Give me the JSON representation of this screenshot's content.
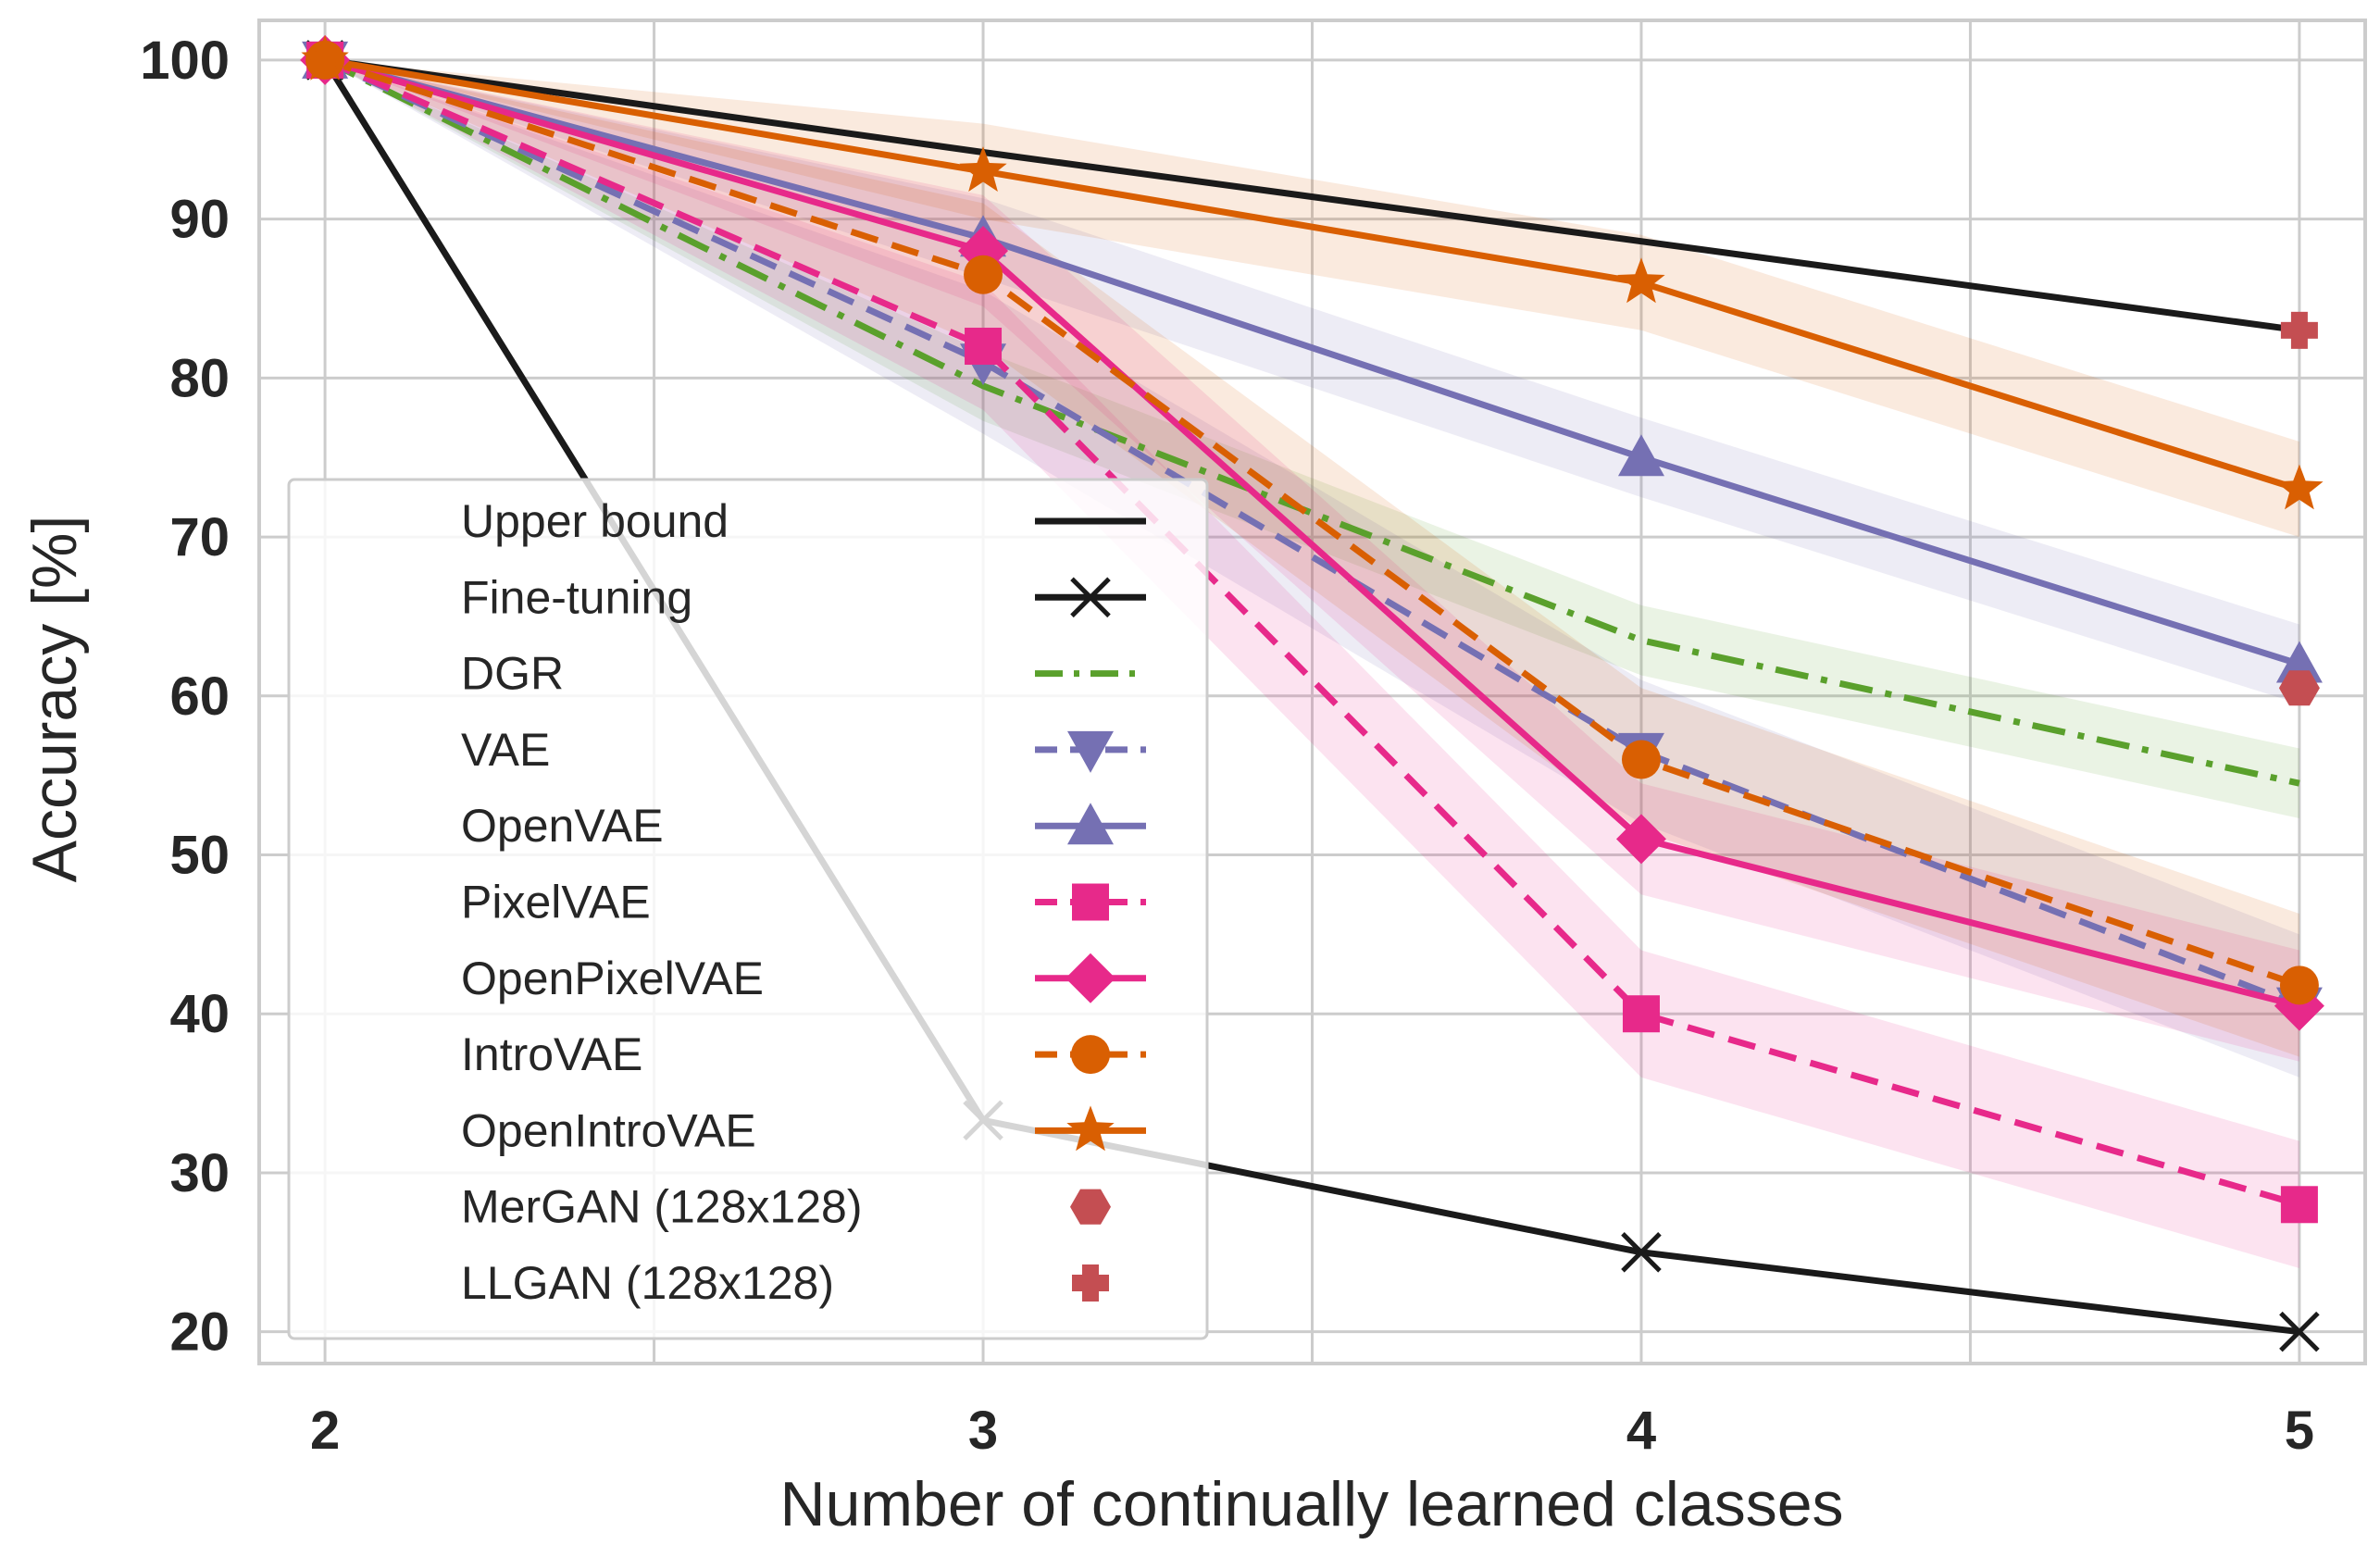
{
  "chart_data": {
    "type": "line",
    "xlabel": "Number of continually learned classes",
    "ylabel": "Accuracy [%]",
    "x": [
      2,
      3,
      4,
      5
    ],
    "x_ticks": [
      "2",
      "3",
      "4",
      "5"
    ],
    "y_ticks": [
      "20",
      "30",
      "40",
      "50",
      "60",
      "70",
      "80",
      "90",
      "100"
    ],
    "xlim": [
      1.9,
      5.1
    ],
    "ylim": [
      18,
      102.5
    ],
    "grid": true,
    "legend_position": "center-left",
    "series": [
      {
        "name": "Upper bound",
        "values": [
          100,
          94.2,
          88.6,
          83.0
        ],
        "color": "#1a1a1a",
        "marker": "none",
        "dash": "solid",
        "band": 0
      },
      {
        "name": "Fine-tuning",
        "values": [
          100,
          33.3,
          25.0,
          20.0
        ],
        "color": "#1a1a1a",
        "marker": "x",
        "dash": "solid",
        "band": 0
      },
      {
        "name": "DGR",
        "values": [
          100,
          79.5,
          63.5,
          54.5
        ],
        "color": "#5aa02c",
        "marker": "none",
        "dash": "dashdot",
        "band": 2.2
      },
      {
        "name": "VAE",
        "values": [
          100,
          81.0,
          56.5,
          40.5
        ],
        "color": "#7570b3",
        "marker": "triangle-down",
        "dash": "dashed",
        "band": 4.5
      },
      {
        "name": "OpenVAE",
        "values": [
          100,
          88.8,
          75.0,
          62.0
        ],
        "color": "#7570b3",
        "marker": "triangle-up",
        "dash": "solid",
        "band": 2.5
      },
      {
        "name": "PixelVAE",
        "values": [
          100,
          82.0,
          40.0,
          28.0
        ],
        "color": "#e7298a",
        "marker": "square",
        "dash": "dashed",
        "band": 4.0
      },
      {
        "name": "OpenPixelVAE",
        "values": [
          100,
          88.0,
          51.0,
          40.5
        ],
        "color": "#e7298a",
        "marker": "diamond",
        "dash": "solid",
        "band": 3.5
      },
      {
        "name": "IntroVAE",
        "values": [
          100,
          86.5,
          56.0,
          41.8
        ],
        "color": "#d95f02",
        "marker": "circle",
        "dash": "dashed",
        "band": 4.5
      },
      {
        "name": "OpenIntroVAE",
        "values": [
          100,
          93.0,
          86.0,
          73.0
        ],
        "color": "#d95f02",
        "marker": "star",
        "dash": "solid",
        "band": 3.0
      },
      {
        "name": "MerGAN (128x128)",
        "values": [
          null,
          null,
          null,
          60.5
        ],
        "color": "#c44e52",
        "marker": "hexagon",
        "dash": "none",
        "band": 0
      },
      {
        "name": "LLGAN (128x128)",
        "values": [
          null,
          null,
          null,
          83.0
        ],
        "color": "#c44e52",
        "marker": "plus",
        "dash": "none",
        "band": 0
      }
    ]
  }
}
